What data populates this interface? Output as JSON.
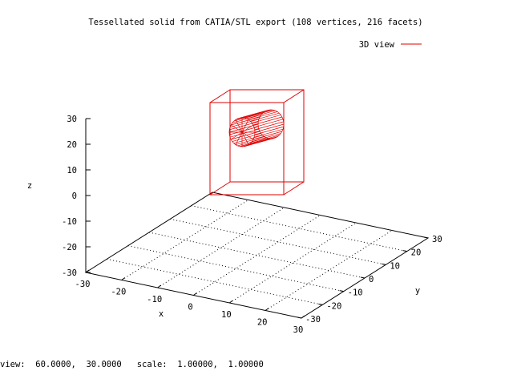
{
  "window": {
    "title": "Tessellated solid from CATIA/STL export (108 vertices, 216 facets)"
  },
  "legend": {
    "label": "3D view",
    "color": "#e00000"
  },
  "status": {
    "view_label": "view:",
    "view_values": "60.0000,  30.0000",
    "scale_label": "scale:",
    "scale_values": "1.00000,  1.00000"
  },
  "chart_data": {
    "type": "surface3d",
    "title": "Tessellated solid from CATIA/STL export (108 vertices, 216 facets)",
    "xlabel": "x",
    "ylabel": "y",
    "zlabel": "z",
    "xlim": [
      -30,
      30
    ],
    "ylim": [
      -30,
      30
    ],
    "zlim": [
      -30,
      30
    ],
    "x_ticks": [
      "-30",
      "-20",
      "-10",
      "0",
      "10",
      "20",
      "30"
    ],
    "y_ticks": [
      "-30",
      "-20",
      "-10",
      "0",
      "10",
      "20",
      "30"
    ],
    "z_ticks": [
      "-30",
      "-20",
      "-10",
      "0",
      "10",
      "20",
      "30"
    ],
    "grid": true,
    "legend_position": "top-right",
    "view": {
      "rot_x": 60.0,
      "rot_z": 30.0,
      "scale": 1.0,
      "scale_z": 1.0
    },
    "series": [
      {
        "name": "3D view",
        "color": "#e00000"
      }
    ]
  }
}
